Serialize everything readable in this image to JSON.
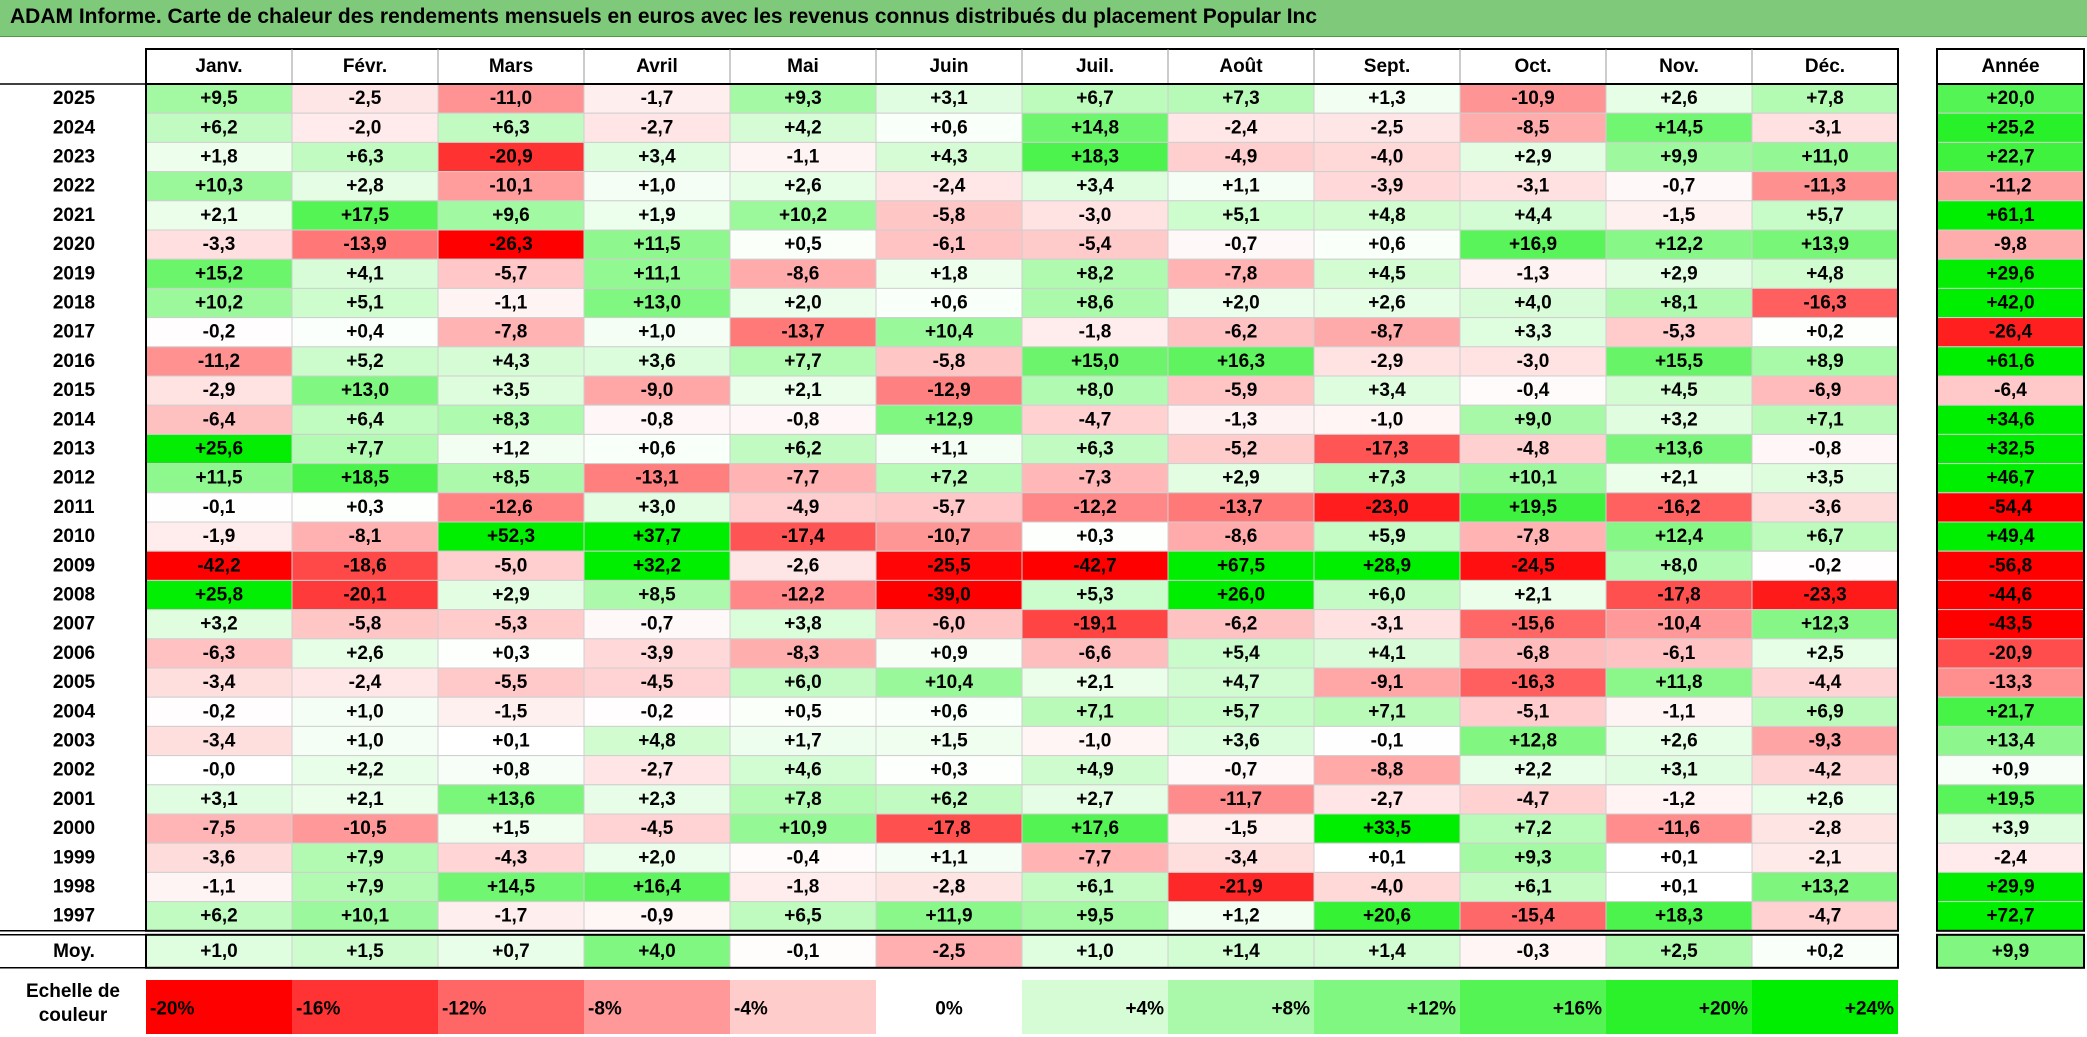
{
  "title": "ADAM Informe. Carte de chaleur des rendements mensuels en euros avec les revenus connus distribués du placement Popular Inc",
  "chart_data": {
    "type": "heatmap",
    "months": [
      "Janv.",
      "Févr.",
      "Mars",
      "Avril",
      "Mai",
      "Juin",
      "Juil.",
      "Août",
      "Sept.",
      "Oct.",
      "Nov.",
      "Déc."
    ],
    "year_header": "Année",
    "rows": [
      {
        "year": "2025",
        "values": [
          "+9,5",
          "-2,5",
          "-11,0",
          "-1,7",
          "+9,3",
          "+3,1",
          "+6,7",
          "+7,3",
          "+1,3",
          "-10,9",
          "+2,6",
          "+7,8"
        ],
        "annual": "+20,0"
      },
      {
        "year": "2024",
        "values": [
          "+6,2",
          "-2,0",
          "+6,3",
          "-2,7",
          "+4,2",
          "+0,6",
          "+14,8",
          "-2,4",
          "-2,5",
          "-8,5",
          "+14,5",
          "-3,1"
        ],
        "annual": "+25,2"
      },
      {
        "year": "2023",
        "values": [
          "+1,8",
          "+6,3",
          "-20,9",
          "+3,4",
          "-1,1",
          "+4,3",
          "+18,3",
          "-4,9",
          "-4,0",
          "+2,9",
          "+9,9",
          "+11,0"
        ],
        "annual": "+22,7"
      },
      {
        "year": "2022",
        "values": [
          "+10,3",
          "+2,8",
          "-10,1",
          "+1,0",
          "+2,6",
          "-2,4",
          "+3,4",
          "+1,1",
          "-3,9",
          "-3,1",
          "-0,7",
          "-11,3"
        ],
        "annual": "-11,2"
      },
      {
        "year": "2021",
        "values": [
          "+2,1",
          "+17,5",
          "+9,6",
          "+1,9",
          "+10,2",
          "-5,8",
          "-3,0",
          "+5,1",
          "+4,8",
          "+4,4",
          "-1,5",
          "+5,7"
        ],
        "annual": "+61,1"
      },
      {
        "year": "2020",
        "values": [
          "-3,3",
          "-13,9",
          "-26,3",
          "+11,5",
          "+0,5",
          "-6,1",
          "-5,4",
          "-0,7",
          "+0,6",
          "+16,9",
          "+12,2",
          "+13,9"
        ],
        "annual": "-9,8"
      },
      {
        "year": "2019",
        "values": [
          "+15,2",
          "+4,1",
          "-5,7",
          "+11,1",
          "-8,6",
          "+1,8",
          "+8,2",
          "-7,8",
          "+4,5",
          "-1,3",
          "+2,9",
          "+4,8"
        ],
        "annual": "+29,6"
      },
      {
        "year": "2018",
        "values": [
          "+10,2",
          "+5,1",
          "-1,1",
          "+13,0",
          "+2,0",
          "+0,6",
          "+8,6",
          "+2,0",
          "+2,6",
          "+4,0",
          "+8,1",
          "-16,3"
        ],
        "annual": "+42,0"
      },
      {
        "year": "2017",
        "values": [
          "-0,2",
          "+0,4",
          "-7,8",
          "+1,0",
          "-13,7",
          "+10,4",
          "-1,8",
          "-6,2",
          "-8,7",
          "+3,3",
          "-5,3",
          "+0,2"
        ],
        "annual": "-26,4"
      },
      {
        "year": "2016",
        "values": [
          "-11,2",
          "+5,2",
          "+4,3",
          "+3,6",
          "+7,7",
          "-5,8",
          "+15,0",
          "+16,3",
          "-2,9",
          "-3,0",
          "+15,5",
          "+8,9"
        ],
        "annual": "+61,6"
      },
      {
        "year": "2015",
        "values": [
          "-2,9",
          "+13,0",
          "+3,5",
          "-9,0",
          "+2,1",
          "-12,9",
          "+8,0",
          "-5,9",
          "+3,4",
          "-0,4",
          "+4,5",
          "-6,9"
        ],
        "annual": "-6,4"
      },
      {
        "year": "2014",
        "values": [
          "-6,4",
          "+6,4",
          "+8,3",
          "-0,8",
          "-0,8",
          "+12,9",
          "-4,7",
          "-1,3",
          "-1,0",
          "+9,0",
          "+3,2",
          "+7,1"
        ],
        "annual": "+34,6"
      },
      {
        "year": "2013",
        "values": [
          "+25,6",
          "+7,7",
          "+1,2",
          "+0,6",
          "+6,2",
          "+1,1",
          "+6,3",
          "-5,2",
          "-17,3",
          "-4,8",
          "+13,6",
          "-0,8"
        ],
        "annual": "+32,5"
      },
      {
        "year": "2012",
        "values": [
          "+11,5",
          "+18,5",
          "+8,5",
          "-13,1",
          "-7,7",
          "+7,2",
          "-7,3",
          "+2,9",
          "+7,3",
          "+10,1",
          "+2,1",
          "+3,5"
        ],
        "annual": "+46,7"
      },
      {
        "year": "2011",
        "values": [
          "-0,1",
          "+0,3",
          "-12,6",
          "+3,0",
          "-4,9",
          "-5,7",
          "-12,2",
          "-13,7",
          "-23,0",
          "+19,5",
          "-16,2",
          "-3,6"
        ],
        "annual": "-54,4"
      },
      {
        "year": "2010",
        "values": [
          "-1,9",
          "-8,1",
          "+52,3",
          "+37,7",
          "-17,4",
          "-10,7",
          "+0,3",
          "-8,6",
          "+5,9",
          "-7,8",
          "+12,4",
          "+6,7"
        ],
        "annual": "+49,4"
      },
      {
        "year": "2009",
        "values": [
          "-42,2",
          "-18,6",
          "-5,0",
          "+32,2",
          "-2,6",
          "-25,5",
          "-42,7",
          "+67,5",
          "+28,9",
          "-24,5",
          "+8,0",
          "-0,2"
        ],
        "annual": "-56,8"
      },
      {
        "year": "2008",
        "values": [
          "+25,8",
          "-20,1",
          "+2,9",
          "+8,5",
          "-12,2",
          "-39,0",
          "+5,3",
          "+26,0",
          "+6,0",
          "+2,1",
          "-17,8",
          "-23,3"
        ],
        "annual": "-44,6"
      },
      {
        "year": "2007",
        "values": [
          "+3,2",
          "-5,8",
          "-5,3",
          "-0,7",
          "+3,8",
          "-6,0",
          "-19,1",
          "-6,2",
          "-3,1",
          "-15,6",
          "-10,4",
          "+12,3"
        ],
        "annual": "-43,5"
      },
      {
        "year": "2006",
        "values": [
          "-6,3",
          "+2,6",
          "+0,3",
          "-3,9",
          "-8,3",
          "+0,9",
          "-6,6",
          "+5,4",
          "+4,1",
          "-6,8",
          "-6,1",
          "+2,5"
        ],
        "annual": "-20,9"
      },
      {
        "year": "2005",
        "values": [
          "-3,4",
          "-2,4",
          "-5,5",
          "-4,5",
          "+6,0",
          "+10,4",
          "+2,1",
          "+4,7",
          "-9,1",
          "-16,3",
          "+11,8",
          "-4,4"
        ],
        "annual": "-13,3"
      },
      {
        "year": "2004",
        "values": [
          "-0,2",
          "+1,0",
          "-1,5",
          "-0,2",
          "+0,5",
          "+0,6",
          "+7,1",
          "+5,7",
          "+7,1",
          "-5,1",
          "-1,1",
          "+6,9"
        ],
        "annual": "+21,7"
      },
      {
        "year": "2003",
        "values": [
          "-3,4",
          "+1,0",
          "+0,1",
          "+4,8",
          "+1,7",
          "+1,5",
          "-1,0",
          "+3,6",
          "-0,1",
          "+12,8",
          "+2,6",
          "-9,3"
        ],
        "annual": "+13,4"
      },
      {
        "year": "2002",
        "values": [
          "-0,0",
          "+2,2",
          "+0,8",
          "-2,7",
          "+4,6",
          "+0,3",
          "+4,9",
          "-0,7",
          "-8,8",
          "+2,2",
          "+3,1",
          "-4,2"
        ],
        "annual": "+0,9"
      },
      {
        "year": "2001",
        "values": [
          "+3,1",
          "+2,1",
          "+13,6",
          "+2,3",
          "+7,8",
          "+6,2",
          "+2,7",
          "-11,7",
          "-2,7",
          "-4,7",
          "-1,2",
          "+2,6"
        ],
        "annual": "+19,5"
      },
      {
        "year": "2000",
        "values": [
          "-7,5",
          "-10,5",
          "+1,5",
          "-4,5",
          "+10,9",
          "-17,8",
          "+17,6",
          "-1,5",
          "+33,5",
          "+7,2",
          "-11,6",
          "-2,8"
        ],
        "annual": "+3,9"
      },
      {
        "year": "1999",
        "values": [
          "-3,6",
          "+7,9",
          "-4,3",
          "+2,0",
          "-0,4",
          "+1,1",
          "-7,7",
          "-3,4",
          "+0,1",
          "+9,3",
          "+0,1",
          "-2,1"
        ],
        "annual": "-2,4"
      },
      {
        "year": "1998",
        "values": [
          "-1,1",
          "+7,9",
          "+14,5",
          "+16,4",
          "-1,8",
          "-2,8",
          "+6,1",
          "-21,9",
          "-4,0",
          "+6,1",
          "+0,1",
          "+13,2"
        ],
        "annual": "+29,9"
      },
      {
        "year": "1997",
        "values": [
          "+6,2",
          "+10,1",
          "-1,7",
          "-0,9",
          "+6,5",
          "+11,9",
          "+9,5",
          "+1,2",
          "+20,6",
          "-15,4",
          "+18,3",
          "-4,7"
        ],
        "annual": "+72,7"
      }
    ],
    "average": {
      "label": "Moy.",
      "values": [
        "+1,0",
        "+1,5",
        "+0,7",
        "+4,0",
        "-0,1",
        "-2,5",
        "+1,0",
        "+1,4",
        "+1,4",
        "-0,3",
        "+2,5",
        "+0,2"
      ],
      "annual": "+9,9"
    },
    "scale": {
      "label_line1": "Echelle de",
      "label_line2": "couleur",
      "steps": [
        {
          "label": "-20%",
          "value": -20
        },
        {
          "label": "-16%",
          "value": -16
        },
        {
          "label": "-12%",
          "value": -12
        },
        {
          "label": "-8%",
          "value": -8
        },
        {
          "label": "-4%",
          "value": -4
        },
        {
          "label": "0%",
          "value": 0
        },
        {
          "label": "+4%",
          "value": 4
        },
        {
          "label": "+8%",
          "value": 8
        },
        {
          "label": "+12%",
          "value": 12
        },
        {
          "label": "+16%",
          "value": 16
        },
        {
          "label": "+20%",
          "value": 20
        },
        {
          "label": "+24%",
          "value": 24
        }
      ]
    },
    "colors": {
      "negative_max": "#ff0000",
      "neutral": "#ffffff",
      "positive_max": "#00ee00",
      "title_bar": "#7fc97a"
    }
  }
}
